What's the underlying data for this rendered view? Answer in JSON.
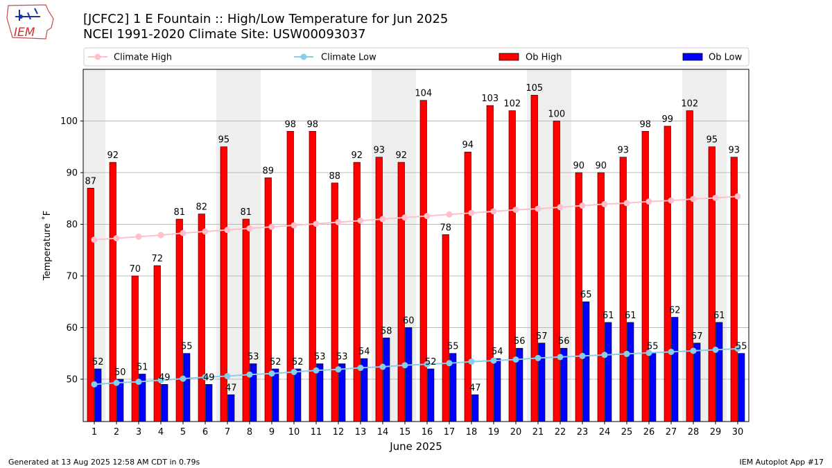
{
  "header": {
    "title_line1": "[JCFC2] 1 E Fountain :: High/Low Temperature for Jun 2025",
    "title_line2": "NCEI 1991-2020 Climate Site: USW00093037"
  },
  "logo": {
    "text": "IEM"
  },
  "footer": {
    "generated": "Generated at 13 Aug 2025 12:58 AM CDT in 0.79s",
    "app": "IEM Autoplot App #17"
  },
  "colors": {
    "ob_high": "#ff0000",
    "ob_low": "#0000ff",
    "climate_high": "#ffc0cb",
    "climate_low": "#87ceeb",
    "weekend_band": "#eeeeee",
    "grid": "#b0b0b0"
  },
  "chart_data": {
    "type": "bar",
    "title": "[JCFC2] 1 E Fountain :: High/Low Temperature for Jun 2025",
    "xlabel": "June 2025",
    "ylabel": "Temperature ˚F",
    "ylim": [
      41.8,
      110
    ],
    "yticks": [
      50,
      60,
      70,
      80,
      90,
      100
    ],
    "grid": true,
    "legend_position": "top",
    "categories": [
      "1",
      "2",
      "3",
      "4",
      "5",
      "6",
      "7",
      "8",
      "9",
      "10",
      "11",
      "12",
      "13",
      "14",
      "15",
      "16",
      "17",
      "18",
      "19",
      "20",
      "21",
      "22",
      "23",
      "24",
      "25",
      "26",
      "27",
      "28",
      "29",
      "30"
    ],
    "shaded_days": [
      1,
      7,
      8,
      14,
      15,
      21,
      22,
      28,
      29
    ],
    "series": [
      {
        "name": "Ob High",
        "kind": "bar",
        "values": [
          87,
          92,
          70,
          72,
          81,
          82,
          95,
          81,
          89,
          98,
          98,
          88,
          92,
          93,
          92,
          104,
          78,
          94,
          103,
          102,
          105,
          100,
          90,
          90,
          93,
          98,
          99,
          102,
          95,
          93
        ]
      },
      {
        "name": "Ob Low",
        "kind": "bar",
        "values": [
          52,
          50,
          51,
          49,
          55,
          49,
          47,
          53,
          52,
          52,
          53,
          53,
          54,
          58,
          60,
          52,
          55,
          47,
          54,
          56,
          57,
          56,
          65,
          61,
          61,
          55,
          62,
          57,
          61,
          55
        ]
      },
      {
        "name": "Climate High",
        "kind": "line",
        "values": [
          77.0,
          77.3,
          77.6,
          77.9,
          78.3,
          78.6,
          78.9,
          79.2,
          79.5,
          79.8,
          80.1,
          80.4,
          80.7,
          81.0,
          81.3,
          81.6,
          81.9,
          82.2,
          82.5,
          82.8,
          83.0,
          83.3,
          83.6,
          83.9,
          84.1,
          84.4,
          84.6,
          84.9,
          85.1,
          85.4
        ]
      },
      {
        "name": "Climate Low",
        "kind": "line",
        "values": [
          49.0,
          49.3,
          49.5,
          49.8,
          50.1,
          50.4,
          50.6,
          50.9,
          51.1,
          51.4,
          51.7,
          51.9,
          52.2,
          52.4,
          52.7,
          52.9,
          53.1,
          53.4,
          53.6,
          53.8,
          54.1,
          54.3,
          54.5,
          54.7,
          54.9,
          55.1,
          55.3,
          55.5,
          55.7,
          55.9
        ]
      }
    ]
  }
}
